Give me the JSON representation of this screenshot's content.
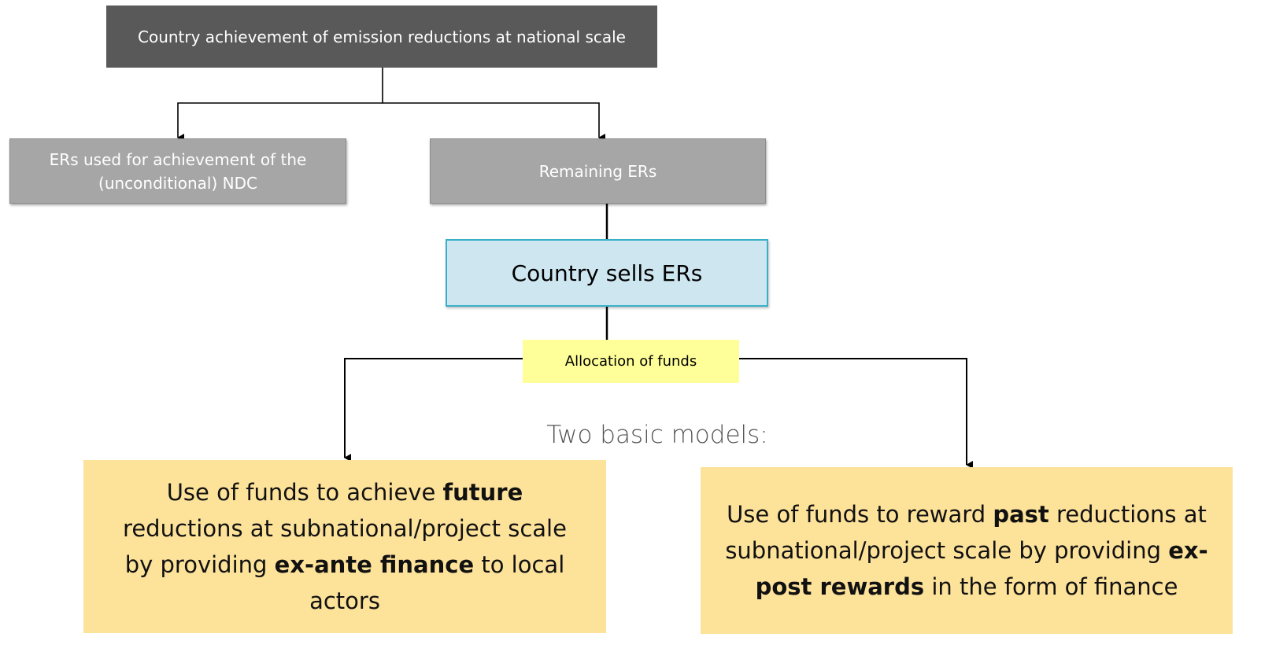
{
  "nodes": [
    {
      "id": "n0",
      "style": "gray-dark",
      "segments": [
        {
          "text": "Country achievement of emission reductions at national scale"
        }
      ]
    },
    {
      "id": "n1",
      "style": "gray",
      "segments": [
        {
          "text": "ERs used for achievement of the (unconditional) NDC"
        }
      ]
    },
    {
      "id": "n2",
      "style": "gray",
      "segments": [
        {
          "text": "Remaining ERs"
        }
      ]
    },
    {
      "id": "n3",
      "style": "sell",
      "segments": [
        {
          "text": "Country sells ERs"
        }
      ]
    },
    {
      "id": "n4",
      "style": "label",
      "segments": [
        {
          "text": "Allocation of funds"
        }
      ]
    },
    {
      "id": "n5",
      "style": "caption",
      "segments": [
        {
          "text": "Two basic models:"
        }
      ]
    },
    {
      "id": "n6",
      "style": "model",
      "segments": [
        {
          "text": "Use of funds to achieve "
        },
        {
          "text": "future",
          "bold": true
        },
        {
          "text": " reductions at subnational/project scale by providing "
        },
        {
          "text": "ex-ante finance",
          "bold": true
        },
        {
          "text": " to local actors"
        }
      ]
    },
    {
      "id": "n7",
      "style": "model",
      "segments": [
        {
          "text": "Use of funds to reward "
        },
        {
          "text": "past",
          "bold": true
        },
        {
          "text": " reductions at subnational/project scale by providing "
        },
        {
          "text": "ex-post rewards",
          "bold": true
        },
        {
          "text": " in the form of finance"
        }
      ]
    }
  ]
}
